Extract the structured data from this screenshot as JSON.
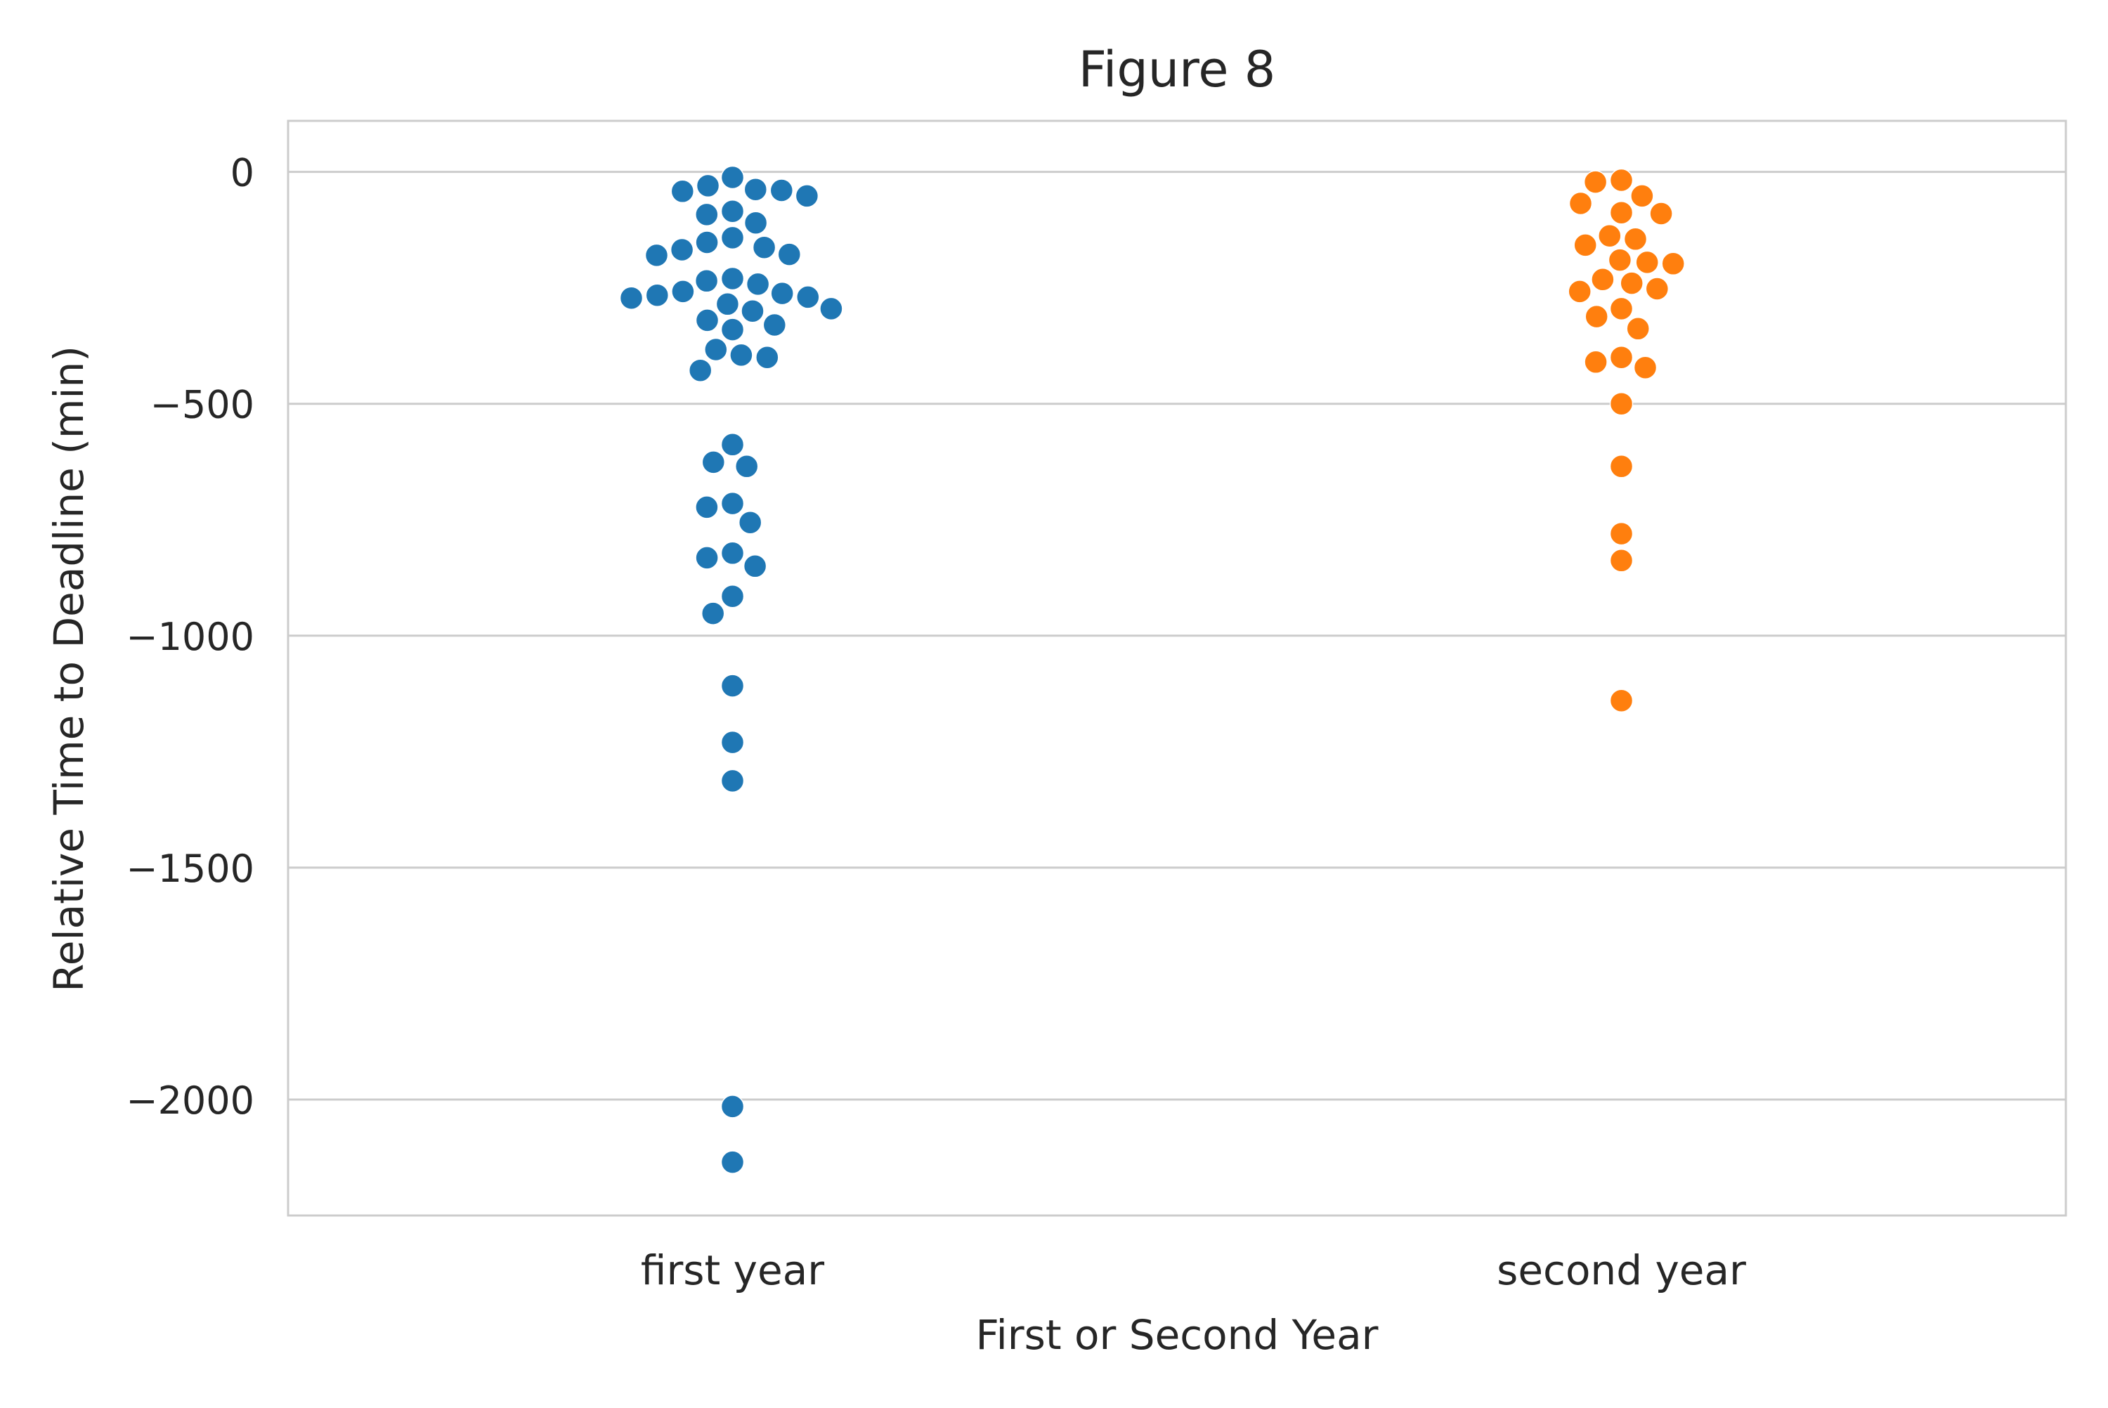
{
  "chart_data": {
    "type": "scatter",
    "subtype": "swarm",
    "title": "Figure 8",
    "xlabel": "First or Second Year",
    "ylabel": "Relative Time to Deadline (min)",
    "categories": [
      "first year",
      "second year"
    ],
    "ylim": [
      -2250,
      110
    ],
    "yticks": [
      0,
      -500,
      -1000,
      -1500,
      -2000
    ],
    "ytick_labels": [
      "0",
      "−500",
      "−1000",
      "−1500",
      "−2000"
    ],
    "grid": "horizontal",
    "style": {
      "grid_color": "#cccccc",
      "spine_color": "#cccccc",
      "background": "#ffffff"
    },
    "series": [
      {
        "category": "first year",
        "color": "#1f77b4",
        "values": [
          -12,
          -30,
          -38,
          -40,
          -42,
          -52,
          -85,
          -92,
          -110,
          -142,
          -152,
          -163,
          -168,
          -178,
          -180,
          -230,
          -235,
          -242,
          -258,
          -262,
          -266,
          -270,
          -272,
          -285,
          -295,
          -300,
          -320,
          -330,
          -340,
          -383,
          -395,
          -400,
          -428,
          -588,
          -626,
          -635,
          -715,
          -723,
          -756,
          -822,
          -832,
          -850,
          -915,
          -952,
          -1108,
          -1230,
          -1313,
          -2015,
          -2135
        ]
      },
      {
        "category": "second year",
        "color": "#ff7f0e",
        "values": [
          -18,
          -22,
          -52,
          -68,
          -88,
          -90,
          -138,
          -145,
          -158,
          -190,
          -195,
          -198,
          -232,
          -240,
          -252,
          -258,
          -295,
          -312,
          -338,
          -400,
          -410,
          -422,
          -500,
          -635,
          -780,
          -838,
          -1140
        ]
      }
    ]
  }
}
